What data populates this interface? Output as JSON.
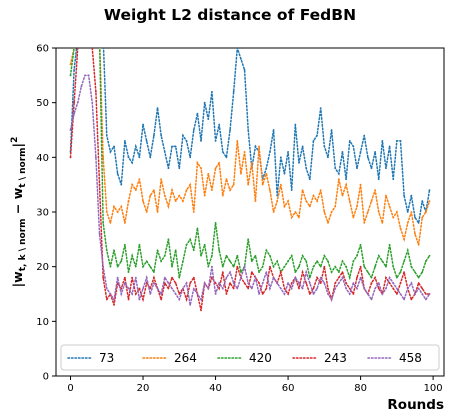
{
  "chart_data": {
    "type": "line",
    "title": "Weight L2 distance of FedBN",
    "xlabel": "Rounds",
    "ylabel": "|w_{t, k \\ norm} − w_{t \\ norm}|²",
    "ylabel_main": "|w",
    "ylabel_sub1": "t, k \\ norm",
    "ylabel_mid": " − w",
    "ylabel_sub2": "t \\ norm",
    "ylabel_tail": "|",
    "ylabel_sup": "2",
    "xlim": [
      -4,
      103
    ],
    "ylim": [
      0,
      60
    ],
    "xticks": [
      0,
      20,
      40,
      60,
      80,
      100
    ],
    "yticks": [
      0,
      10,
      20,
      30,
      40,
      50,
      60
    ],
    "line_style": "dotted",
    "grid": false,
    "legend_position": "bottom",
    "legend_columns": 5,
    "x": [
      0,
      1,
      2,
      3,
      4,
      5,
      6,
      7,
      8,
      9,
      10,
      11,
      12,
      13,
      14,
      15,
      16,
      17,
      18,
      19,
      20,
      21,
      22,
      23,
      24,
      25,
      26,
      27,
      28,
      29,
      30,
      31,
      32,
      33,
      34,
      35,
      36,
      37,
      38,
      39,
      40,
      41,
      42,
      43,
      44,
      45,
      46,
      47,
      48,
      49,
      50,
      51,
      52,
      53,
      54,
      55,
      56,
      57,
      58,
      59,
      60,
      61,
      62,
      63,
      64,
      65,
      66,
      67,
      68,
      69,
      70,
      71,
      72,
      73,
      74,
      75,
      76,
      77,
      78,
      79,
      80,
      81,
      82,
      83,
      84,
      85,
      86,
      87,
      88,
      89,
      90,
      91,
      92,
      93,
      94,
      95,
      96,
      97,
      98,
      99
    ],
    "series": [
      {
        "name": "73",
        "color": "#1f77b4",
        "values": [
          41,
          56,
          62,
          62,
          62,
          62,
          62,
          62,
          62,
          62,
          44,
          41,
          42,
          37,
          35,
          43,
          40,
          39,
          42,
          40,
          46,
          43,
          40,
          44,
          49,
          44,
          41,
          38,
          42,
          42,
          38,
          44,
          43,
          40,
          45,
          48,
          43,
          50,
          47,
          52,
          43,
          46,
          41,
          40,
          45,
          52,
          60,
          58,
          56,
          45,
          38,
          42,
          41,
          36,
          38,
          41,
          45,
          33,
          40,
          37,
          41,
          34,
          46,
          39,
          42,
          38,
          36,
          43,
          44,
          49,
          42,
          40,
          45,
          38,
          37,
          41,
          36,
          43,
          42,
          38,
          41,
          44,
          40,
          38,
          41,
          36,
          43,
          38,
          42,
          36,
          43,
          43,
          33,
          30,
          33,
          29,
          28,
          32,
          30,
          34
        ]
      },
      {
        "name": "264",
        "color": "#ff7f0e",
        "values": [
          57,
          60,
          62,
          62,
          62,
          62,
          62,
          62,
          62,
          40,
          30,
          28,
          31,
          30,
          31,
          28,
          32,
          35,
          34,
          36,
          32,
          30,
          33,
          34,
          30,
          36,
          33,
          31,
          34,
          32,
          33,
          32,
          34,
          35,
          30,
          39,
          38,
          33,
          37,
          34,
          38,
          39,
          33,
          36,
          34,
          35,
          43,
          37,
          41,
          35,
          39,
          32,
          42,
          35,
          37,
          34,
          30,
          32,
          35,
          31,
          32,
          29,
          30,
          29,
          34,
          32,
          31,
          33,
          32,
          34,
          30,
          28,
          30,
          31,
          36,
          33,
          35,
          32,
          29,
          31,
          35,
          28,
          30,
          32,
          34,
          30,
          28,
          33,
          31,
          29,
          30,
          27,
          25,
          28,
          30,
          26,
          24,
          29,
          30,
          32
        ]
      },
      {
        "name": "420",
        "color": "#2ca02c",
        "values": [
          55,
          60,
          62,
          62,
          62,
          62,
          62,
          62,
          62,
          28,
          23,
          20,
          23,
          20,
          21,
          24,
          19,
          22,
          20,
          24,
          20,
          21,
          20,
          19,
          23,
          21,
          22,
          25,
          20,
          23,
          18,
          21,
          24,
          25,
          23,
          27,
          22,
          24,
          20,
          22,
          28,
          23,
          20,
          22,
          21,
          20,
          22,
          19,
          20,
          25,
          21,
          22,
          19,
          20,
          23,
          22,
          20,
          21,
          19,
          20,
          21,
          22,
          19,
          20,
          22,
          21,
          18,
          20,
          21,
          20,
          22,
          21,
          19,
          20,
          19,
          21,
          20,
          18,
          21,
          22,
          24,
          20,
          19,
          18,
          20,
          22,
          21,
          20,
          24,
          20,
          18,
          19,
          21,
          23,
          20,
          19,
          18,
          19,
          21,
          22
        ]
      },
      {
        "name": "243",
        "color": "#d62728",
        "values": [
          40,
          50,
          60,
          62,
          62,
          62,
          60,
          52,
          35,
          18,
          14,
          15,
          13,
          17,
          16,
          18,
          14,
          18,
          15,
          16,
          14,
          17,
          16,
          18,
          16,
          14,
          17,
          16,
          18,
          17,
          15,
          16,
          14,
          17,
          18,
          15,
          12,
          17,
          16,
          18,
          17,
          16,
          19,
          15,
          17,
          16,
          20,
          18,
          17,
          16,
          19,
          18,
          17,
          15,
          16,
          20,
          18,
          17,
          19,
          16,
          15,
          17,
          18,
          16,
          19,
          17,
          15,
          16,
          18,
          17,
          20,
          16,
          14,
          17,
          18,
          19,
          17,
          16,
          15,
          18,
          20,
          16,
          15,
          17,
          18,
          16,
          15,
          18,
          17,
          16,
          15,
          17,
          19,
          16,
          14,
          15,
          17,
          16,
          15,
          15
        ]
      },
      {
        "name": "458",
        "color": "#9467bd",
        "values": [
          45,
          48,
          50,
          53,
          55,
          55,
          50,
          40,
          26,
          20,
          16,
          15,
          14,
          18,
          15,
          17,
          16,
          15,
          18,
          14,
          16,
          18,
          15,
          17,
          16,
          15,
          18,
          17,
          16,
          15,
          14,
          16,
          17,
          13,
          16,
          15,
          14,
          17,
          16,
          20,
          15,
          17,
          16,
          18,
          19,
          17,
          16,
          18,
          20,
          17,
          16,
          18,
          15,
          17,
          19,
          16,
          18,
          17,
          16,
          15,
          17,
          16,
          18,
          17,
          16,
          19,
          17,
          15,
          16,
          18,
          17,
          15,
          14,
          16,
          17,
          18,
          16,
          15,
          17,
          16,
          18,
          16,
          15,
          14,
          16,
          17,
          15,
          16,
          18,
          17,
          16,
          15,
          14,
          16,
          17,
          15,
          16,
          15,
          14,
          15
        ]
      }
    ]
  }
}
